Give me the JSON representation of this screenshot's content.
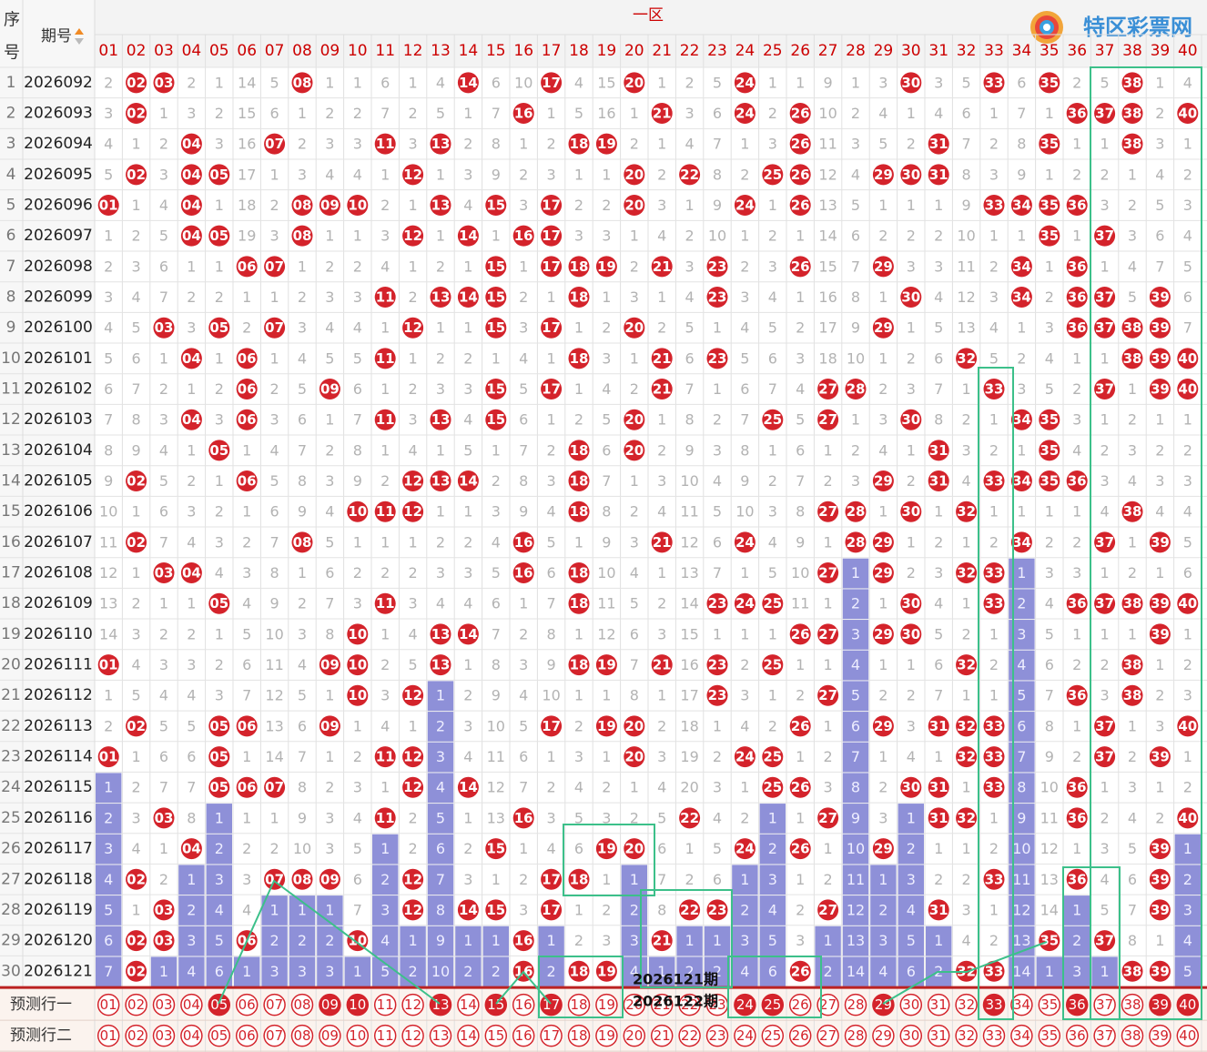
{
  "header": {
    "seq_label_top": "序",
    "seq_label_bottom": "号",
    "issue_label": "期号",
    "zone_label": "一区",
    "logo": "特区彩票网"
  },
  "columns": [
    "01",
    "02",
    "03",
    "04",
    "05",
    "06",
    "07",
    "08",
    "09",
    "10",
    "11",
    "12",
    "13",
    "14",
    "15",
    "16",
    "17",
    "18",
    "19",
    "20",
    "21",
    "22",
    "23",
    "24",
    "25",
    "26",
    "27",
    "28",
    "29",
    "30",
    "31",
    "32",
    "33",
    "34",
    "35",
    "36",
    "37",
    "38",
    "39",
    "40"
  ],
  "rows": [
    {
      "seq": 1,
      "issue": "2026092",
      "cells": [
        2,
        "02",
        "03",
        2,
        1,
        14,
        5,
        "08",
        1,
        1,
        6,
        1,
        4,
        "14",
        6,
        10,
        "17",
        4,
        15,
        "20",
        1,
        2,
        5,
        "24",
        1,
        1,
        9,
        1,
        3,
        "30",
        3,
        5,
        "33",
        6,
        "35",
        2,
        5,
        "38",
        1,
        4
      ]
    },
    {
      "seq": 2,
      "issue": "2026093",
      "cells": [
        3,
        "02",
        1,
        3,
        2,
        15,
        6,
        1,
        2,
        2,
        7,
        2,
        5,
        1,
        7,
        "16",
        1,
        5,
        16,
        1,
        "21",
        3,
        6,
        "24",
        2,
        "26",
        10,
        2,
        4,
        1,
        4,
        6,
        1,
        7,
        1,
        "36",
        "37",
        "38",
        2,
        "40"
      ]
    },
    {
      "seq": 3,
      "issue": "2026094",
      "cells": [
        4,
        1,
        2,
        "04",
        3,
        16,
        "07",
        2,
        3,
        3,
        "11",
        3,
        "13",
        2,
        8,
        1,
        2,
        "18",
        "19",
        2,
        1,
        4,
        7,
        1,
        3,
        "26",
        11,
        3,
        5,
        2,
        "31",
        7,
        2,
        8,
        "35",
        1,
        1,
        "38",
        3,
        1
      ]
    },
    {
      "seq": 4,
      "issue": "2026095",
      "cells": [
        5,
        "02",
        3,
        "04",
        "05",
        17,
        1,
        3,
        4,
        4,
        1,
        "12",
        1,
        3,
        9,
        2,
        3,
        1,
        1,
        "20",
        2,
        "22",
        8,
        2,
        "25",
        "26",
        12,
        4,
        "29",
        "30",
        "31",
        8,
        3,
        9,
        1,
        2,
        2,
        1,
        4,
        2
      ]
    },
    {
      "seq": 5,
      "issue": "2026096",
      "cells": [
        "01",
        1,
        4,
        "04",
        1,
        18,
        2,
        "08",
        "09",
        "10",
        2,
        1,
        "13",
        4,
        "15",
        3,
        "17",
        2,
        2,
        "20",
        3,
        1,
        9,
        "24",
        1,
        "26",
        13,
        5,
        1,
        1,
        1,
        9,
        "33",
        "34",
        "35",
        "36",
        3,
        2,
        5,
        3
      ]
    },
    {
      "seq": 6,
      "issue": "2026097",
      "cells": [
        1,
        2,
        5,
        "04",
        "05",
        19,
        3,
        "08",
        1,
        1,
        3,
        "12",
        1,
        "14",
        1,
        "16",
        "17",
        3,
        3,
        1,
        4,
        2,
        10,
        1,
        2,
        1,
        14,
        6,
        2,
        2,
        2,
        10,
        1,
        1,
        "35",
        1,
        "37",
        3,
        6,
        4
      ]
    },
    {
      "seq": 7,
      "issue": "2026098",
      "cells": [
        2,
        3,
        6,
        1,
        1,
        "06",
        "07",
        1,
        2,
        2,
        4,
        1,
        2,
        1,
        "15",
        1,
        "17",
        "18",
        "19",
        2,
        "21",
        3,
        "23",
        2,
        3,
        "26",
        15,
        7,
        "29",
        3,
        3,
        11,
        2,
        "34",
        1,
        "36",
        1,
        4,
        7,
        5
      ]
    },
    {
      "seq": 8,
      "issue": "2026099",
      "cells": [
        3,
        4,
        7,
        2,
        2,
        1,
        1,
        2,
        3,
        3,
        "11",
        2,
        "13",
        "14",
        "15",
        2,
        1,
        "18",
        1,
        3,
        1,
        4,
        "23",
        3,
        4,
        1,
        16,
        8,
        1,
        "30",
        4,
        12,
        3,
        "34",
        2,
        "36",
        "37",
        5,
        "39",
        6
      ]
    },
    {
      "seq": 9,
      "issue": "2026100",
      "cells": [
        4,
        5,
        "03",
        3,
        "05",
        2,
        "07",
        3,
        4,
        4,
        1,
        "12",
        1,
        1,
        "15",
        3,
        "17",
        1,
        2,
        "20",
        2,
        5,
        1,
        4,
        5,
        2,
        17,
        9,
        "29",
        1,
        5,
        13,
        4,
        1,
        3,
        "36",
        "37",
        "38",
        "39",
        7
      ]
    },
    {
      "seq": 10,
      "issue": "2026101",
      "cells": [
        5,
        6,
        1,
        "04",
        1,
        "06",
        1,
        4,
        5,
        5,
        "11",
        1,
        2,
        2,
        1,
        4,
        1,
        "18",
        3,
        1,
        "21",
        6,
        "23",
        5,
        6,
        3,
        18,
        10,
        1,
        2,
        6,
        "32",
        5,
        2,
        4,
        1,
        1,
        "38",
        "39",
        "40"
      ]
    },
    {
      "seq": 11,
      "issue": "2026102",
      "cells": [
        6,
        7,
        2,
        1,
        2,
        "06",
        2,
        5,
        "09",
        6,
        1,
        2,
        3,
        3,
        "15",
        5,
        "17",
        1,
        4,
        2,
        "21",
        7,
        1,
        6,
        7,
        4,
        "27",
        "28",
        2,
        3,
        7,
        1,
        "33",
        3,
        5,
        2,
        "37",
        1,
        "39",
        "40"
      ]
    },
    {
      "seq": 12,
      "issue": "2026103",
      "cells": [
        7,
        8,
        3,
        "04",
        3,
        "06",
        3,
        6,
        1,
        7,
        "11",
        3,
        "13",
        4,
        "15",
        6,
        1,
        2,
        5,
        "20",
        1,
        8,
        2,
        7,
        "25",
        5,
        "27",
        1,
        3,
        "30",
        8,
        2,
        1,
        "34",
        "35",
        3,
        1,
        2,
        1,
        1
      ]
    },
    {
      "seq": 13,
      "issue": "2026104",
      "cells": [
        8,
        9,
        4,
        1,
        "05",
        1,
        4,
        7,
        2,
        8,
        1,
        4,
        1,
        5,
        1,
        7,
        2,
        "18",
        6,
        "20",
        2,
        9,
        3,
        8,
        1,
        6,
        1,
        2,
        4,
        1,
        "31",
        3,
        2,
        1,
        "35",
        4,
        2,
        3,
        2,
        2
      ]
    },
    {
      "seq": 14,
      "issue": "2026105",
      "cells": [
        9,
        "02",
        5,
        2,
        1,
        "06",
        5,
        8,
        3,
        9,
        2,
        "12",
        "13",
        "14",
        2,
        8,
        3,
        "18",
        7,
        1,
        3,
        10,
        4,
        9,
        2,
        7,
        2,
        3,
        "29",
        2,
        "31",
        4,
        "33",
        "34",
        "35",
        "36",
        3,
        4,
        3,
        3
      ]
    },
    {
      "seq": 15,
      "issue": "2026106",
      "cells": [
        10,
        1,
        6,
        3,
        2,
        1,
        6,
        9,
        4,
        "10",
        "11",
        "12",
        1,
        1,
        3,
        9,
        4,
        "18",
        8,
        2,
        4,
        11,
        5,
        10,
        3,
        8,
        "27",
        "28",
        1,
        "30",
        1,
        "32",
        1,
        1,
        1,
        1,
        4,
        "38",
        4,
        4
      ]
    },
    {
      "seq": 16,
      "issue": "2026107",
      "cells": [
        11,
        "02",
        7,
        4,
        3,
        2,
        7,
        "08",
        5,
        1,
        1,
        1,
        2,
        2,
        4,
        "16",
        5,
        1,
        9,
        3,
        "21",
        12,
        6,
        "24",
        4,
        9,
        1,
        "28",
        "29",
        1,
        2,
        1,
        2,
        "34",
        2,
        2,
        "37",
        1,
        "39",
        5
      ]
    },
    {
      "seq": 17,
      "issue": "2026108",
      "cells": [
        12,
        1,
        "03",
        "04",
        4,
        3,
        8,
        1,
        6,
        2,
        2,
        2,
        3,
        3,
        5,
        "16",
        6,
        "18",
        10,
        4,
        1,
        13,
        7,
        1,
        5,
        10,
        "27",
        1,
        "29",
        2,
        3,
        "32",
        "33",
        1,
        3,
        3,
        1,
        2,
        1,
        6
      ]
    },
    {
      "seq": 18,
      "issue": "2026109",
      "cells": [
        13,
        2,
        1,
        1,
        "05",
        4,
        9,
        2,
        7,
        3,
        "11",
        3,
        4,
        4,
        6,
        1,
        7,
        "18",
        11,
        5,
        2,
        14,
        "23",
        "24",
        "25",
        11,
        1,
        2,
        1,
        "30",
        4,
        1,
        "33",
        2,
        4,
        "36",
        "37",
        "38",
        "39",
        "40"
      ]
    },
    {
      "seq": 19,
      "issue": "2026110",
      "cells": [
        14,
        3,
        2,
        2,
        1,
        5,
        10,
        3,
        8,
        "10",
        1,
        4,
        "13",
        "14",
        7,
        2,
        8,
        1,
        12,
        6,
        3,
        15,
        1,
        1,
        1,
        "26",
        "27",
        3,
        "29",
        "30",
        5,
        2,
        1,
        3,
        5,
        1,
        1,
        1,
        "39",
        1
      ]
    },
    {
      "seq": 20,
      "issue": "2026111",
      "cells": [
        "01",
        4,
        3,
        3,
        2,
        6,
        11,
        4,
        "09",
        "10",
        2,
        5,
        "13",
        1,
        8,
        3,
        9,
        "18",
        "19",
        7,
        "21",
        16,
        "23",
        2,
        "25",
        1,
        1,
        4,
        1,
        1,
        6,
        "32",
        2,
        4,
        6,
        2,
        2,
        "38",
        1,
        2
      ]
    },
    {
      "seq": 21,
      "issue": "2026112",
      "cells": [
        1,
        5,
        4,
        4,
        3,
        7,
        12,
        5,
        1,
        "10",
        3,
        "12",
        1,
        2,
        9,
        4,
        10,
        1,
        1,
        8,
        1,
        17,
        "23",
        3,
        1,
        2,
        "27",
        5,
        2,
        2,
        7,
        1,
        1,
        5,
        7,
        "36",
        3,
        "38",
        2,
        3
      ]
    },
    {
      "seq": 22,
      "issue": "2026113",
      "cells": [
        2,
        "02",
        5,
        5,
        "05",
        "06",
        13,
        6,
        "09",
        1,
        4,
        1,
        2,
        3,
        10,
        5,
        "17",
        2,
        "19",
        "20",
        2,
        18,
        1,
        4,
        2,
        "26",
        1,
        6,
        "29",
        3,
        "31",
        "32",
        "33",
        6,
        8,
        1,
        "37",
        1,
        3,
        "40"
      ]
    },
    {
      "seq": 23,
      "issue": "2026114",
      "cells": [
        "01",
        1,
        6,
        6,
        "05",
        1,
        14,
        7,
        1,
        2,
        "11",
        "12",
        3,
        4,
        11,
        6,
        1,
        3,
        1,
        "20",
        3,
        19,
        2,
        "24",
        "25",
        1,
        2,
        7,
        1,
        4,
        1,
        "32",
        "33",
        7,
        9,
        2,
        "37",
        2,
        "39",
        1
      ]
    },
    {
      "seq": 24,
      "issue": "2026115",
      "cells": [
        1,
        2,
        7,
        7,
        "05",
        "06",
        "07",
        8,
        2,
        3,
        1,
        "12",
        4,
        "14",
        12,
        7,
        2,
        4,
        2,
        1,
        4,
        20,
        3,
        1,
        "25",
        "26",
        3,
        8,
        2,
        "30",
        "31",
        1,
        "33",
        8,
        10,
        "36",
        1,
        3,
        1,
        2
      ]
    },
    {
      "seq": 25,
      "issue": "2026116",
      "cells": [
        2,
        3,
        "03",
        8,
        1,
        1,
        1,
        9,
        3,
        4,
        "11",
        2,
        5,
        1,
        13,
        "16",
        3,
        5,
        3,
        2,
        5,
        "22",
        4,
        2,
        1,
        1,
        "27",
        9,
        3,
        1,
        "31",
        "32",
        1,
        9,
        11,
        "36",
        2,
        4,
        2,
        "40"
      ]
    },
    {
      "seq": 26,
      "issue": "2026117",
      "cells": [
        3,
        4,
        1,
        "04",
        2,
        2,
        2,
        10,
        3,
        5,
        1,
        2,
        6,
        2,
        "15",
        1,
        4,
        6,
        "19",
        "20",
        6,
        1,
        5,
        "24",
        2,
        "26",
        1,
        10,
        "29",
        2,
        1,
        1,
        2,
        10,
        12,
        1,
        3,
        5,
        "39",
        1
      ]
    },
    {
      "seq": 27,
      "issue": "2026118",
      "cells": [
        4,
        "02",
        2,
        1,
        3,
        3,
        "07",
        "08",
        "09",
        6,
        2,
        "12",
        7,
        3,
        1,
        2,
        "17",
        "18",
        1,
        1,
        7,
        2,
        6,
        1,
        3,
        1,
        2,
        11,
        1,
        3,
        2,
        2,
        "33",
        11,
        13,
        "36",
        4,
        6,
        "39",
        2
      ]
    },
    {
      "seq": 28,
      "issue": "2026119",
      "cells": [
        5,
        1,
        "03",
        2,
        4,
        4,
        1,
        1,
        1,
        7,
        3,
        "12",
        8,
        "14",
        "15",
        3,
        "17",
        1,
        2,
        2,
        8,
        "22",
        "23",
        2,
        4,
        2,
        "27",
        12,
        2,
        4,
        "31",
        3,
        1,
        12,
        14,
        1,
        5,
        7,
        "39",
        3
      ]
    },
    {
      "seq": 29,
      "issue": "2026120",
      "cells": [
        6,
        "02",
        "03",
        3,
        5,
        "06",
        2,
        2,
        2,
        "10",
        4,
        1,
        9,
        1,
        1,
        "16",
        1,
        2,
        3,
        3,
        "21",
        1,
        1,
        3,
        5,
        3,
        1,
        13,
        3,
        5,
        1,
        4,
        2,
        13,
        "35",
        2,
        "37",
        8,
        1,
        4
      ]
    },
    {
      "seq": 30,
      "issue": "2026121",
      "cells": [
        7,
        "02",
        1,
        4,
        6,
        1,
        3,
        3,
        3,
        1,
        5,
        2,
        10,
        2,
        2,
        "16",
        2,
        "18",
        "19",
        4,
        1,
        2,
        2,
        4,
        6,
        "26",
        2,
        14,
        4,
        6,
        2,
        "32",
        "33",
        14,
        1,
        3,
        1,
        "38",
        "39",
        5
      ]
    }
  ],
  "predictions": [
    {
      "label": "预测行一",
      "picks": [
        "05",
        "09",
        "10",
        "13",
        "15",
        "17",
        "24",
        "25",
        "29",
        "33",
        "36",
        "39",
        "40"
      ]
    },
    {
      "label": "预测行二",
      "picks": []
    }
  ],
  "annotations": [
    "2026121期",
    "2026122期"
  ]
}
